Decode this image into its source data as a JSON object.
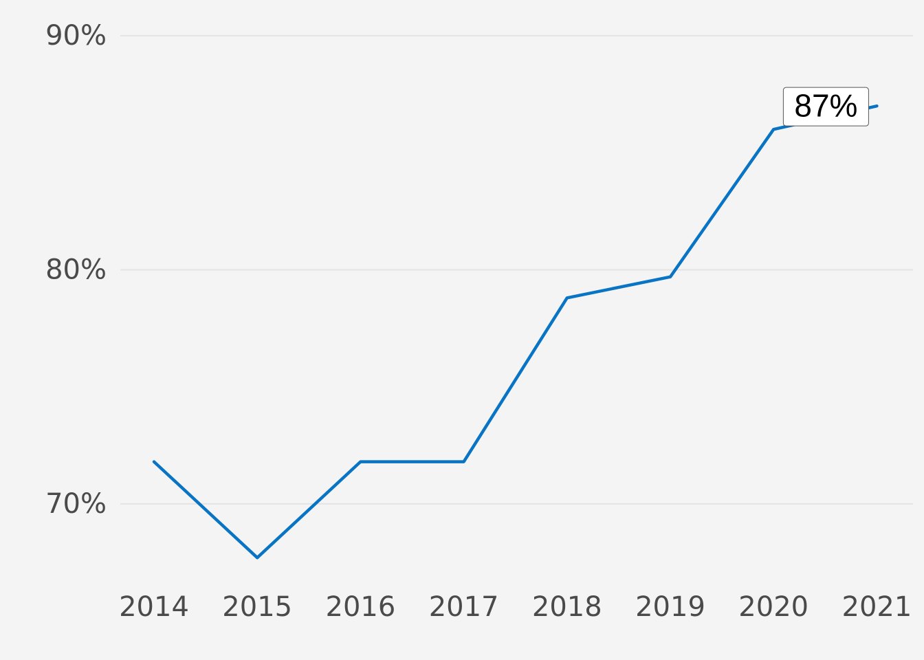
{
  "chart_data": {
    "type": "line",
    "categories": [
      "2014",
      "2015",
      "2016",
      "2017",
      "2018",
      "2019",
      "2020",
      "2021"
    ],
    "series": [
      {
        "color": "#0a74c4",
        "values": [
          71.8,
          67.7,
          71.8,
          71.8,
          78.8,
          79.7,
          86.0,
          87.0
        ],
        "value_labels": [
          null,
          null,
          null,
          null,
          null,
          null,
          null,
          "87%"
        ]
      }
    ],
    "ylim": [
      67,
      91
    ],
    "yticks": [
      {
        "value": 70,
        "label": "70%"
      },
      {
        "value": 80,
        "label": "80%"
      },
      {
        "value": 90,
        "label": "90%"
      }
    ],
    "grid": true
  }
}
